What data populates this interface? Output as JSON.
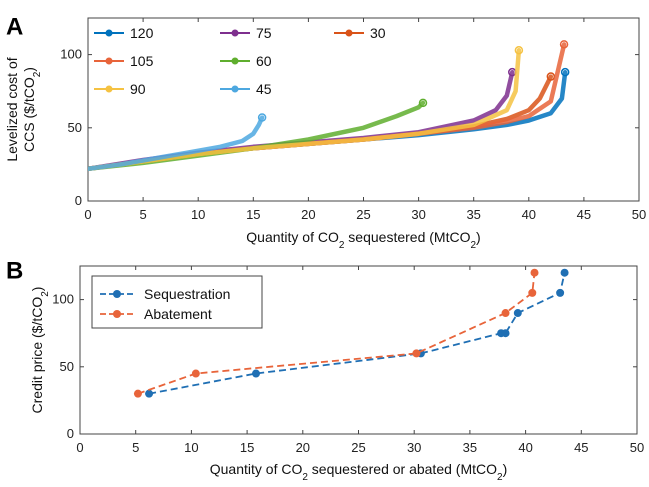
{
  "chart_data": [
    {
      "type": "scatter",
      "panel_label": "A",
      "xlabel": "Quantity of CO2 sequestered (MtCO2)",
      "ylabel": "Levelized cost of CCS ($/tCO2)",
      "ylabel_line1": "Levelized cost of",
      "ylabel_line2": "CCS ($/tCO2)",
      "xlim": [
        0,
        50
      ],
      "ylim": [
        0,
        125
      ],
      "x_ticks": [
        0,
        5,
        10,
        15,
        20,
        25,
        30,
        35,
        40,
        45,
        50
      ],
      "y_ticks": [
        0,
        50,
        100
      ],
      "grid": false,
      "legend_position": "top-left",
      "series": [
        {
          "name": "120",
          "color": "#0072bd",
          "x": [
            0,
            5,
            10,
            15,
            20,
            25,
            30,
            35,
            38,
            40,
            42,
            43,
            43.3
          ],
          "y": [
            22,
            27,
            32,
            36,
            39,
            42,
            45,
            49,
            52,
            55,
            60,
            70,
            88
          ]
        },
        {
          "name": "75",
          "color": "#7e2f8e",
          "x": [
            0,
            5,
            10,
            15,
            20,
            25,
            30,
            35,
            37,
            38,
            38.5
          ],
          "y": [
            22,
            28,
            33,
            37,
            40,
            43,
            47,
            55,
            62,
            72,
            88
          ]
        },
        {
          "name": "30",
          "color": "#d95319",
          "x": [
            0,
            5,
            10,
            15,
            20,
            25,
            30,
            35,
            38,
            40,
            41,
            42
          ],
          "y": [
            22,
            27,
            32,
            36,
            39,
            42,
            46,
            51,
            56,
            62,
            70,
            85
          ]
        },
        {
          "name": "105",
          "color": "#e8643a",
          "x": [
            0,
            5,
            10,
            15,
            20,
            25,
            30,
            35,
            38,
            40,
            42,
            43.2
          ],
          "y": [
            22,
            27,
            32,
            36,
            39,
            42,
            46,
            50,
            54,
            58,
            68,
            107
          ]
        },
        {
          "name": "60",
          "color": "#5fae2e",
          "x": [
            0,
            5,
            10,
            15,
            20,
            25,
            28,
            30,
            30.4
          ],
          "y": [
            22,
            26,
            31,
            36,
            42,
            50,
            58,
            64,
            67
          ]
        },
        {
          "name": "90",
          "color": "#f5c242",
          "x": [
            0,
            5,
            10,
            15,
            20,
            25,
            30,
            35,
            38,
            38.8,
            39.1
          ],
          "y": [
            22,
            27,
            32,
            36,
            39,
            42,
            46,
            52,
            62,
            75,
            103
          ]
        },
        {
          "name": "45",
          "color": "#4da8e0",
          "x": [
            0,
            3,
            6,
            9,
            12,
            14,
            15,
            15.5,
            15.8
          ],
          "y": [
            22,
            25,
            29,
            33,
            37,
            41,
            46,
            52,
            57
          ]
        }
      ]
    },
    {
      "type": "line",
      "panel_label": "B",
      "xlabel": "Quantity of CO2 sequestered or abated (MtCO2)",
      "ylabel": "Credit price ($/tCO2)",
      "xlim": [
        0,
        50
      ],
      "ylim": [
        0,
        125
      ],
      "x_ticks": [
        0,
        5,
        10,
        15,
        20,
        25,
        30,
        35,
        40,
        45,
        50
      ],
      "y_ticks": [
        0,
        50,
        100
      ],
      "grid": false,
      "legend_position": "top-left",
      "series": [
        {
          "name": "Sequestration",
          "color": "#1f6fb4",
          "x": [
            6.2,
            15.8,
            30.6,
            37.8,
            38.2,
            39.3,
            43.1,
            43.5
          ],
          "y": [
            30,
            45,
            60,
            75,
            75,
            90,
            105,
            120
          ]
        },
        {
          "name": "Abatement",
          "color": "#e8643a",
          "x": [
            5.2,
            10.4,
            30.2,
            38.2,
            40.6,
            40.8
          ],
          "y": [
            30,
            45,
            60,
            90,
            105,
            120
          ]
        }
      ]
    }
  ]
}
